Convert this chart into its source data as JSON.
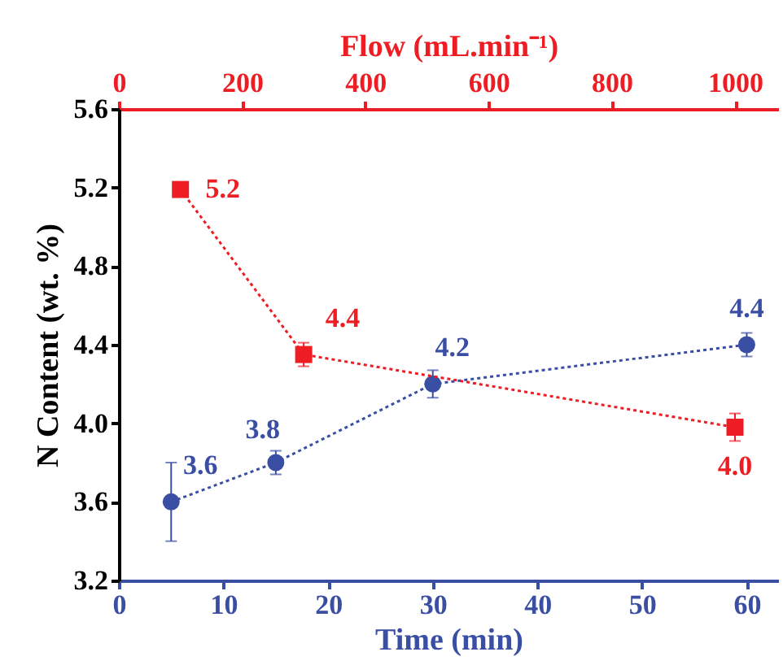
{
  "chart_data": {
    "type": "line",
    "xlabel": "Time (min)",
    "x2label": "Flow (mL.min⁻¹)",
    "ylabel": "N Content (wt. %)",
    "xlim": [
      0,
      63
    ],
    "xticks": [
      0,
      10,
      20,
      30,
      40,
      50,
      60
    ],
    "x2lim": [
      0,
      1070
    ],
    "x2ticks": [
      0,
      200,
      400,
      600,
      800,
      1000
    ],
    "ylim": [
      3.2,
      5.6
    ],
    "yticks": [
      3.2,
      3.6,
      {
        "value": 4,
        "label": "4.0"
      },
      4.4,
      4.8,
      5.2,
      5.6
    ],
    "grid": false,
    "line_style": "dotted",
    "series": [
      {
        "color": "#3a4fa3",
        "marker": "circle",
        "x": [
          5,
          15,
          30,
          60
        ],
        "values": [
          3.6,
          3.8,
          4.2,
          4.4
        ],
        "errors": [
          0.2,
          0.06,
          0.07,
          0.06
        ],
        "value_labels": [
          "3.6",
          "3.8",
          "4.2",
          "4.4"
        ]
      },
      {
        "color": "#ee1d23",
        "marker": "square",
        "axis": "x2",
        "x": [
          100,
          300,
          1000
        ],
        "values": [
          5.19,
          4.35,
          3.98
        ],
        "errors": [
          0.02,
          0.06,
          0.07
        ],
        "value_labels": [
          "5.2",
          "4.4",
          "4.0"
        ]
      }
    ]
  }
}
